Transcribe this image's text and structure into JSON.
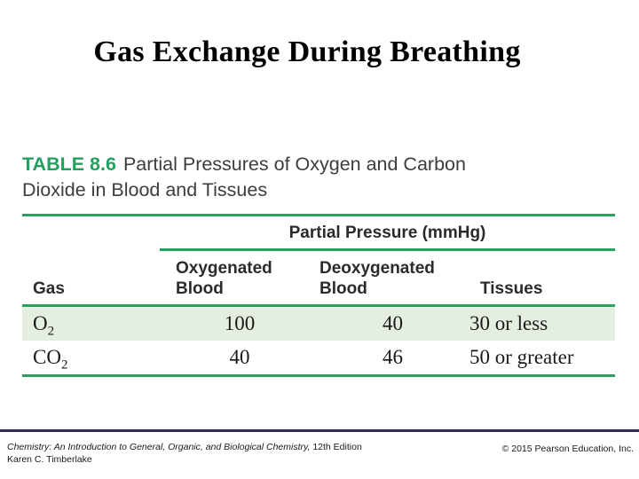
{
  "slide": {
    "title": "Gas Exchange During Breathing"
  },
  "table": {
    "caption_label": "TABLE 8.6",
    "caption_text": "Partial Pressures of Oxygen and Carbon\nDioxide in Blood and Tissues",
    "group_header": "Partial Pressure (mmHg)",
    "columns": {
      "gas": "Gas",
      "oxygenated": "Oxygenated\nBlood",
      "deoxygenated": "Deoxygenated\nBlood",
      "tissues": "Tissues"
    },
    "rows": [
      {
        "gas_main": "O",
        "gas_sub": "2",
        "oxygenated": "100",
        "deoxygenated": "40",
        "tissues": "30 or less"
      },
      {
        "gas_main": "CO",
        "gas_sub": "2",
        "oxygenated": "40",
        "deoxygenated": "46",
        "tissues": "50 or greater"
      }
    ],
    "colors": {
      "accent_green": "#2aa05f",
      "caption_green": "#21a05f",
      "stripe_green": "#e4efe1"
    }
  },
  "footer": {
    "book_title": "Chemistry: An Introduction to General, Organic, and Biological Chemistry,",
    "edition": " 12th Edition",
    "author": "Karen C. Timberlake",
    "copyright": "© 2015 Pearson Education, Inc.",
    "divider_color": "#2e2d55"
  }
}
